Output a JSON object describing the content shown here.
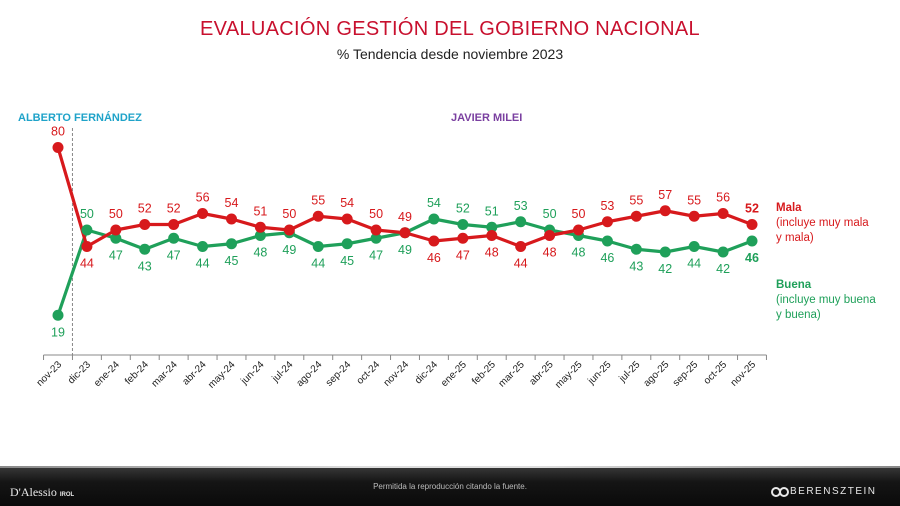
{
  "header": {
    "title": "EVALUACIÓN GESTIÓN DEL GOBIERNO NACIONAL",
    "subtitle": "% Tendencia desde noviembre 2023"
  },
  "eras": {
    "fernandez": "ALBERTO FERNÁNDEZ",
    "milei": "JAVIER MILEI"
  },
  "legend": {
    "mala_title": "Mala",
    "mala_desc_1": "(incluye muy mala",
    "mala_desc_2": "y mala)",
    "buena_title": "Buena",
    "buena_desc_1": "(incluye muy buena",
    "buena_desc_2": "y buena)"
  },
  "footer": {
    "note": "Permitida la reproducción citando la fuente.",
    "logo_left": "D'Alessio",
    "logo_left_sub": "IROL",
    "logo_right": "BERENSZTEIN"
  },
  "colors": {
    "mala": "#d7191c",
    "buena": "#1fa05a",
    "axis": "#888888"
  },
  "chart_data": {
    "type": "line",
    "title": "EVALUACIÓN GESTIÓN DEL GOBIERNO NACIONAL",
    "subtitle": "% Tendencia desde noviembre 2023",
    "xlabel": "",
    "ylabel": "",
    "ylim": [
      0,
      100
    ],
    "grid": false,
    "categories": [
      "nov-23",
      "dic-23",
      "ene-24",
      "feb-24",
      "mar-24",
      "abr-24",
      "may-24",
      "jun-24",
      "jul-24",
      "ago-24",
      "sep-24",
      "oct-24",
      "nov-24",
      "dic-24",
      "ene-25",
      "feb-25",
      "mar-25",
      "abr-25",
      "may-25",
      "jun-25",
      "jul-25",
      "ago-25",
      "sep-25",
      "oct-25",
      "nov-25"
    ],
    "series": [
      {
        "name": "Mala",
        "values": [
          80,
          44,
          50,
          52,
          52,
          56,
          54,
          51,
          50,
          55,
          54,
          50,
          49,
          46,
          47,
          48,
          44,
          48,
          50,
          53,
          55,
          57,
          55,
          56,
          52
        ]
      },
      {
        "name": "Buena",
        "values": [
          19,
          50,
          47,
          43,
          47,
          44,
          45,
          48,
          49,
          44,
          45,
          47,
          49,
          54,
          52,
          51,
          53,
          50,
          48,
          46,
          43,
          42,
          44,
          42,
          46
        ]
      }
    ]
  }
}
